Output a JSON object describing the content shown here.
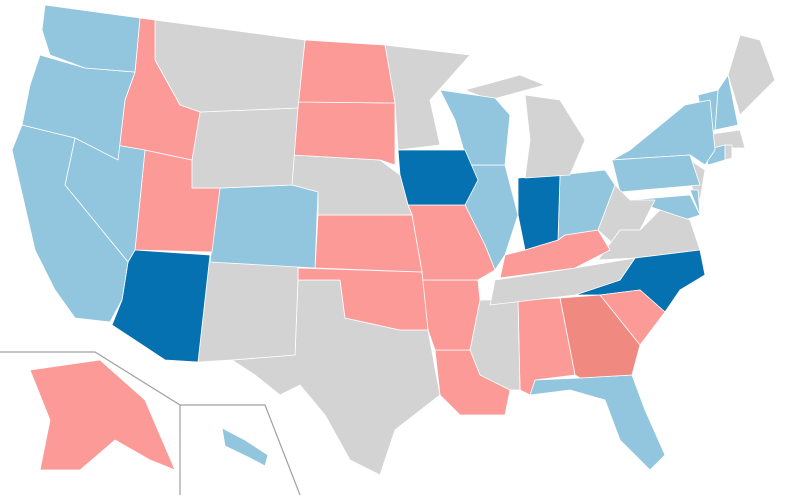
{
  "map": {
    "regions": [
      {
        "color": "#92c5de"
      },
      {
        "color": "#92c5de"
      },
      {
        "color": "#92c5de"
      },
      {
        "color": "#92c5de"
      },
      {
        "color": "#fc9a98"
      },
      {
        "color": "#d3d3d3"
      },
      {
        "color": "#d3d3d3"
      },
      {
        "color": "#fc9a98"
      },
      {
        "color": "#92c5de"
      },
      {
        "color": "#0571b0"
      },
      {
        "color": "#d3d3d3"
      },
      {
        "color": "#fc9a98"
      },
      {
        "color": "#fc9a98"
      },
      {
        "color": "#d3d3d3"
      },
      {
        "color": "#fc9a98"
      },
      {
        "color": "#fc9a98"
      },
      {
        "color": "#d3d3d3"
      },
      {
        "color": "#d3d3d3"
      },
      {
        "color": "#0571b0"
      },
      {
        "color": "#fc9a98"
      },
      {
        "color": "#fc9a98"
      },
      {
        "color": "#fc9a98"
      },
      {
        "color": "#92c5de"
      },
      {
        "color": "#92c5de"
      },
      {
        "color": "#d3d3d3"
      },
      {
        "color": "#d3d3d3"
      },
      {
        "color": "#0571b0"
      },
      {
        "color": "#92c5de"
      },
      {
        "color": "#fc9a98"
      },
      {
        "color": "#d3d3d3"
      },
      {
        "color": "#d3d3d3"
      },
      {
        "color": "#fc9a98"
      },
      {
        "color": "#f08a80"
      },
      {
        "color": "#92c5de"
      },
      {
        "color": "#fc9a98"
      },
      {
        "color": "#0571b0"
      },
      {
        "color": "#d3d3d3"
      },
      {
        "color": "#d3d3d3"
      },
      {
        "color": "#92c5de"
      },
      {
        "color": "#92c5de"
      },
      {
        "color": "#92c5de"
      },
      {
        "color": "#92c5de"
      },
      {
        "color": "#d3d3d3"
      },
      {
        "color": "#92c5de"
      },
      {
        "color": "#d3d3d3"
      },
      {
        "color": "#d3d3d3"
      },
      {
        "color": "#92c5de"
      },
      {
        "color": "#92c5de"
      },
      {
        "color": "#d3d3d3"
      },
      {
        "color": "#fc9a98"
      },
      {
        "color": "#92c5de"
      }
    ]
  }
}
